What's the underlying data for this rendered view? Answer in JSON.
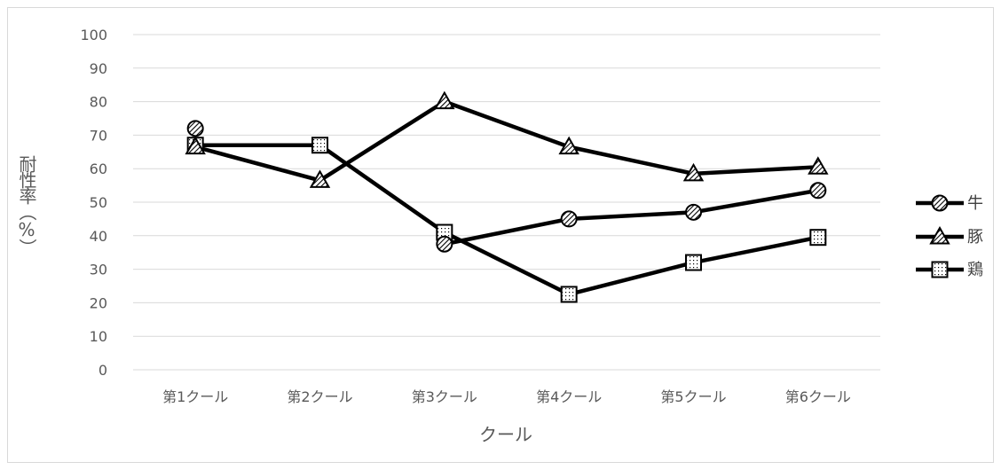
{
  "chart_data": {
    "type": "line",
    "categories": [
      "第1クール",
      "第2クール",
      "第3クール",
      "第4クール",
      "第5クール",
      "第6クール"
    ],
    "series": [
      {
        "name": "牛",
        "marker": "circle-hatched",
        "values": [
          72,
          null,
          37.5,
          45,
          47,
          53.5
        ]
      },
      {
        "name": "豚",
        "marker": "triangle-hatched",
        "values": [
          66.5,
          56.5,
          80,
          66.5,
          58.5,
          60.5
        ]
      },
      {
        "name": "鶏",
        "marker": "square-dotted",
        "values": [
          67,
          67,
          41,
          22.5,
          32,
          39.5
        ]
      }
    ],
    "xlabel": "クール",
    "ylabel": "耐性率（%）",
    "ylim": [
      0,
      100
    ],
    "yticks": [
      0,
      10,
      20,
      30,
      40,
      50,
      60,
      70,
      80,
      90,
      100
    ],
    "grid": true,
    "legend_position": "right",
    "colors": {
      "line": "#000000",
      "grid": "#d9d9d9",
      "text": "#595959"
    }
  }
}
